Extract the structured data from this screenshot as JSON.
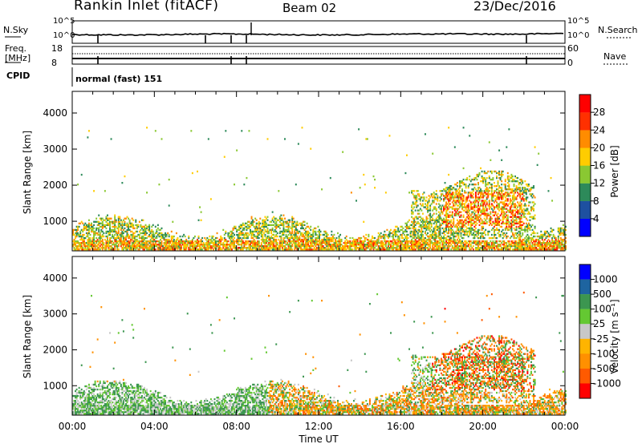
{
  "header": {
    "station": "Rankin Inlet (fitACF)",
    "beam": "Beam 02",
    "date": "23/Dec/2016"
  },
  "summary_panel": {
    "nsky_label": "N.Sky",
    "nsearch_label": "N.Search",
    "noise_tick_top_left": "10^5",
    "noise_tick_bottom_left": "10^0",
    "noise_tick_top_right": "10^5",
    "noise_tick_bottom_right": "10^0",
    "freq_label": "Freq.",
    "freq_unit": "[MHz]",
    "freq_tick_top": "18",
    "freq_tick_bottom": "8",
    "nave_label": "Nave",
    "nave_tick_top": "60",
    "nave_tick_bottom": "0",
    "cpid_label": "CPID",
    "cpid_value": "normal (fast) 151"
  },
  "colors": {
    "power": [
      "#0000ff",
      "#1e50a0",
      "#2d8a5a",
      "#8ac832",
      "#ffcc00",
      "#ff8c00",
      "#ff3000",
      "#ff0000"
    ],
    "velocity": [
      "#ff0000",
      "#ff5a00",
      "#ff9000",
      "#ffb400",
      "#c8c8c8",
      "#64c832",
      "#3c9650",
      "#1e64a0",
      "#0000ff"
    ]
  },
  "chart_data": [
    {
      "type": "heatmap",
      "name": "power",
      "ylabel": "Slant Range [km]",
      "yticks": [
        "1000",
        "2000",
        "3000",
        "4000"
      ],
      "ylim": [
        180,
        4600
      ],
      "xlim_hours": [
        0,
        24
      ],
      "colorbar": {
        "label": "Power [dB]",
        "ticks": [
          "4",
          "8",
          "12",
          "16",
          "20",
          "24",
          "28"
        ],
        "range": [
          0,
          32
        ]
      }
    },
    {
      "type": "heatmap",
      "name": "velocity",
      "ylabel": "Slant Range [km]",
      "yticks": [
        "1000",
        "2000",
        "3000",
        "4000"
      ],
      "ylim": [
        180,
        4600
      ],
      "xlim_hours": [
        0,
        24
      ],
      "xticks": [
        "00:00",
        "04:00",
        "08:00",
        "12:00",
        "16:00",
        "20:00",
        "00:00"
      ],
      "xlabel": "Time UT",
      "colorbar": {
        "label": "Velocity [m s⁻¹]",
        "ticks": [
          "1000",
          "500",
          "100",
          "25",
          "-25",
          "-100",
          "-500",
          "-1000"
        ]
      }
    }
  ]
}
